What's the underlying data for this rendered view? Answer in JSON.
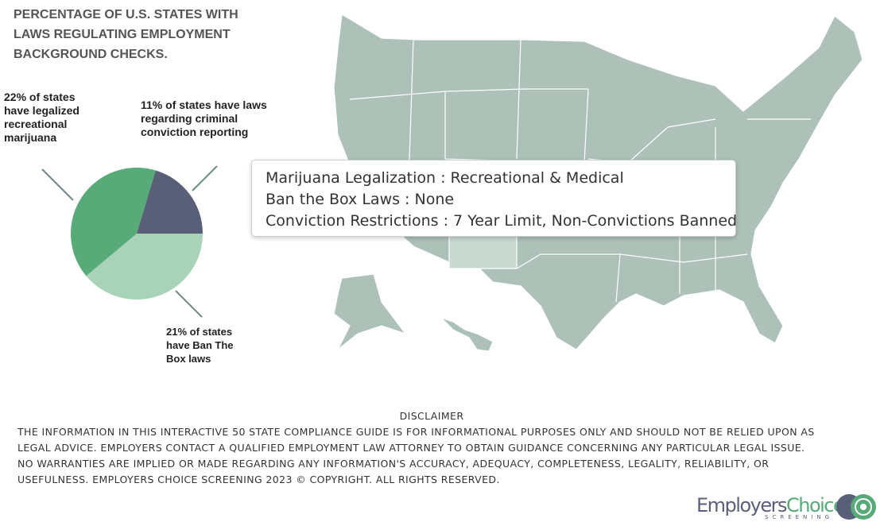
{
  "chart_data": {
    "type": "pie",
    "title": [
      "PERCENTAGE OF U.S. STATES WITH",
      "LAWS REGULATING EMPLOYMENT",
      "BACKGROUND CHECKS."
    ],
    "labels": [
      [
        "21% of states",
        "have Ban The",
        "Box laws"
      ],
      [
        "22% of states",
        "have legalized",
        "recreational",
        "marijuana"
      ],
      [
        "11% of states have laws",
        "regarding criminal",
        "conviction reporting"
      ]
    ],
    "values": [
      21,
      22,
      11
    ],
    "colors": [
      "#a9d3b9",
      "#58ab78",
      "#5a5f78"
    ]
  },
  "map": {
    "tooltip": [
      "Marijuana Legalization : Recreational & Medical",
      "Ban the Box Laws : None",
      "Conviction Restrictions : 7 Year Limit, Non-Convictions Banned"
    ]
  },
  "disclaimer": {
    "title": "DISCLAIMER",
    "lines": [
      "THE INFORMATION IN THIS INTERACTIVE 50 STATE COMPLIANCE GUIDE IS FOR INFORMATIONAL PURPOSES ONLY AND SHOULD NOT BE RELIED UPON AS",
      "LEGAL ADVICE.  EMPLOYERS CONTACT A  QUALIFIED EMPLOYMENT LAW ATTORNEY TO OBTAIN GUIDANCE CONCERNING ANY PARTICULAR LEGAL ISSUE.",
      "NO WARRANTIES ARE IMPLIED OR MADE REGARDING ANY INFORMATION'S ACCURACY, ADEQUACY, COMPLETENESS, LEGALITY, RELIABILITY, OR",
      "USEFULNESS. EMPLOYERS CHOICE SCREENING 2023 © COPYRIGHT. ALL RIGHTS RESERVED."
    ]
  },
  "logo": {
    "name1": "Employers",
    "name2": "Choice",
    "tagline": "SCREENING"
  }
}
